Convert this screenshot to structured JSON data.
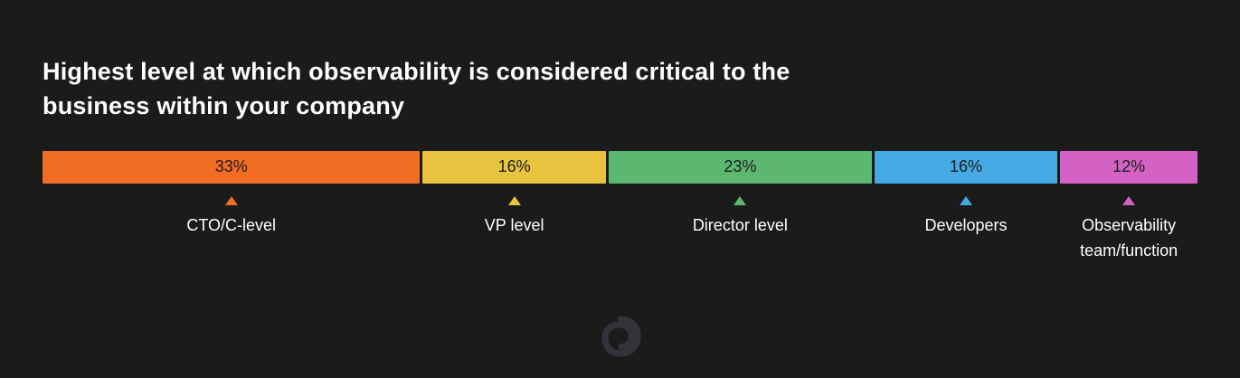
{
  "chart_data": {
    "type": "bar",
    "variant": "horizontal-stacked-percentage",
    "title": "Highest level at which observability is considered critical to the business within your company",
    "categories": [
      "CTO/C-level",
      "VP level",
      "Director level",
      "Developers",
      "Observability team/function"
    ],
    "values": [
      33,
      16,
      23,
      16,
      12
    ],
    "value_labels": [
      "33%",
      "16%",
      "23%",
      "16%",
      "12%"
    ],
    "colors": [
      "#F26D24",
      "#E8C33F",
      "#5CB870",
      "#45AAE4",
      "#D462C4"
    ],
    "total": 100,
    "unit": "%",
    "grid": false,
    "legend_position": "below-bar",
    "segments": [
      {
        "label": "CTO/C-level",
        "percent": 33,
        "value_label": "33%",
        "color": "#F26D24"
      },
      {
        "label": "VP level",
        "percent": 16,
        "value_label": "16%",
        "color": "#E8C33F"
      },
      {
        "label": "Director level",
        "percent": 23,
        "value_label": "23%",
        "color": "#5CB870"
      },
      {
        "label": "Developers",
        "percent": 16,
        "value_label": "16%",
        "color": "#45AAE4"
      },
      {
        "label": "Observability team/function",
        "percent": 12,
        "value_label": "12%",
        "color": "#D462C4"
      }
    ]
  },
  "theme": {
    "background": "#1b1b1b",
    "title_color": "#ffffff",
    "label_color": "#ffffff",
    "value_text_color": "#1c1c1c",
    "logo_color": "#34333b"
  },
  "logo": {
    "name": "grafana-logo",
    "color": "#34333b"
  }
}
